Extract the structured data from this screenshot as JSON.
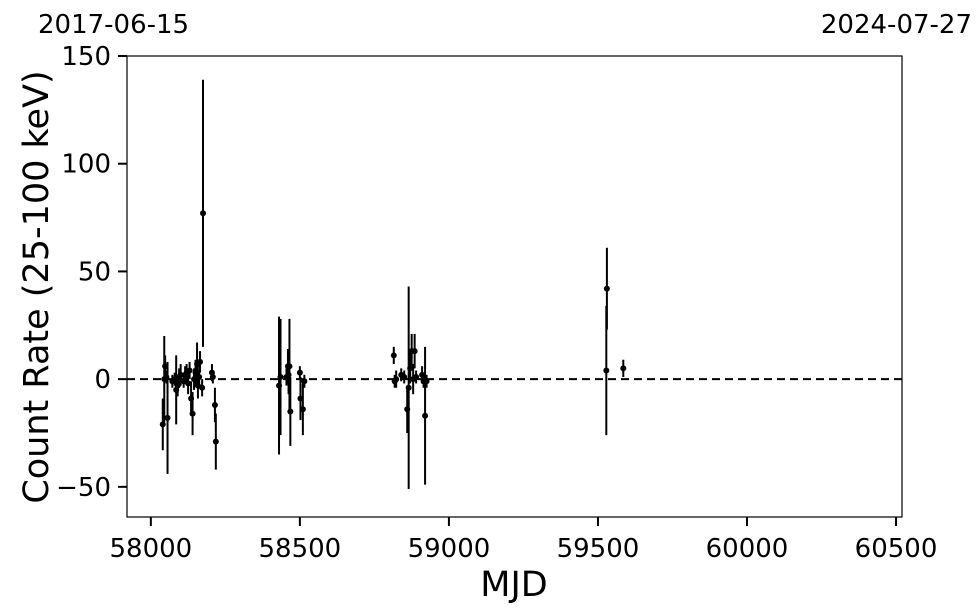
{
  "top_labels": {
    "left": "2017-06-15",
    "right": "2024-07-27"
  },
  "chart_data": {
    "type": "scatter",
    "title": "",
    "xlabel": "MJD",
    "ylabel": "Count Rate (25-100 keV)",
    "xlim": [
      57920,
      60520
    ],
    "ylim": [
      -64,
      150
    ],
    "xticks": [
      58000,
      58500,
      59000,
      59500,
      60000,
      60500
    ],
    "xtick_labels": [
      "58000",
      "58500",
      "59000",
      "59500",
      "60000",
      "60500"
    ],
    "yticks": [
      -50,
      0,
      50,
      100,
      150
    ],
    "ytick_labels": [
      "−50",
      "0",
      "50",
      "100",
      "150"
    ],
    "reference_line": {
      "y": 0,
      "style": "dashed"
    },
    "error_bars": true,
    "grid": false,
    "points": [
      {
        "x": 58040,
        "y": -21,
        "err": 12
      },
      {
        "x": 58045,
        "y": 0,
        "err": 20
      },
      {
        "x": 58048,
        "y": 6,
        "err": 5
      },
      {
        "x": 58052,
        "y": 1,
        "err": 3
      },
      {
        "x": 58056,
        "y": -18,
        "err": 26
      },
      {
        "x": 58072,
        "y": -1,
        "err": 3
      },
      {
        "x": 58080,
        "y": 0,
        "err": 3
      },
      {
        "x": 58085,
        "y": -5,
        "err": 16
      },
      {
        "x": 58090,
        "y": -3,
        "err": 5
      },
      {
        "x": 58095,
        "y": 1,
        "err": 4
      },
      {
        "x": 58100,
        "y": 2,
        "err": 5
      },
      {
        "x": 58110,
        "y": -1,
        "err": 3
      },
      {
        "x": 58115,
        "y": 2,
        "err": 4
      },
      {
        "x": 58120,
        "y": 3,
        "err": 4
      },
      {
        "x": 58125,
        "y": -2,
        "err": 5
      },
      {
        "x": 58130,
        "y": 4,
        "err": 4
      },
      {
        "x": 58135,
        "y": -9,
        "err": 8
      },
      {
        "x": 58140,
        "y": -16,
        "err": 10
      },
      {
        "x": 58145,
        "y": 0,
        "err": 5
      },
      {
        "x": 58150,
        "y": 3,
        "err": 6
      },
      {
        "x": 58155,
        "y": 7,
        "err": 10
      },
      {
        "x": 58158,
        "y": -3,
        "err": 6
      },
      {
        "x": 58162,
        "y": 1,
        "err": 5
      },
      {
        "x": 58165,
        "y": 8,
        "err": 5
      },
      {
        "x": 58172,
        "y": -4,
        "err": 4
      },
      {
        "x": 58175,
        "y": 77,
        "err": 62
      },
      {
        "x": 58205,
        "y": 3,
        "err": 4
      },
      {
        "x": 58208,
        "y": 1,
        "err": 3
      },
      {
        "x": 58215,
        "y": -12,
        "err": 8
      },
      {
        "x": 58218,
        "y": -29,
        "err": 13
      },
      {
        "x": 58430,
        "y": -3,
        "err": 32
      },
      {
        "x": 58435,
        "y": 1,
        "err": 27
      },
      {
        "x": 58455,
        "y": 1,
        "err": 4
      },
      {
        "x": 58460,
        "y": 6,
        "err": 8
      },
      {
        "x": 58462,
        "y": 2,
        "err": 9
      },
      {
        "x": 58465,
        "y": 6,
        "err": 22
      },
      {
        "x": 58468,
        "y": -15,
        "err": 16
      },
      {
        "x": 58500,
        "y": 3,
        "err": 3
      },
      {
        "x": 58502,
        "y": -9,
        "err": 10
      },
      {
        "x": 58510,
        "y": -14,
        "err": 12
      },
      {
        "x": 58515,
        "y": -1,
        "err": 3
      },
      {
        "x": 58815,
        "y": 11,
        "err": 4
      },
      {
        "x": 58818,
        "y": -1,
        "err": 3
      },
      {
        "x": 58823,
        "y": 0,
        "err": 4
      },
      {
        "x": 58840,
        "y": 2,
        "err": 3
      },
      {
        "x": 58850,
        "y": 1,
        "err": 3
      },
      {
        "x": 58860,
        "y": -14,
        "err": 11
      },
      {
        "x": 58865,
        "y": -4,
        "err": 47
      },
      {
        "x": 58870,
        "y": 5,
        "err": 7
      },
      {
        "x": 58875,
        "y": 13,
        "err": 8
      },
      {
        "x": 58880,
        "y": 0,
        "err": 7
      },
      {
        "x": 58885,
        "y": 13,
        "err": 8
      },
      {
        "x": 58890,
        "y": 1,
        "err": 3
      },
      {
        "x": 58910,
        "y": 2,
        "err": 4
      },
      {
        "x": 58915,
        "y": -1,
        "err": 3
      },
      {
        "x": 58920,
        "y": -17,
        "err": 32
      },
      {
        "x": 58925,
        "y": -1,
        "err": 3
      },
      {
        "x": 59528,
        "y": 4,
        "err": 30
      },
      {
        "x": 59530,
        "y": 42,
        "err": 19
      },
      {
        "x": 59585,
        "y": 5,
        "err": 4
      }
    ]
  }
}
